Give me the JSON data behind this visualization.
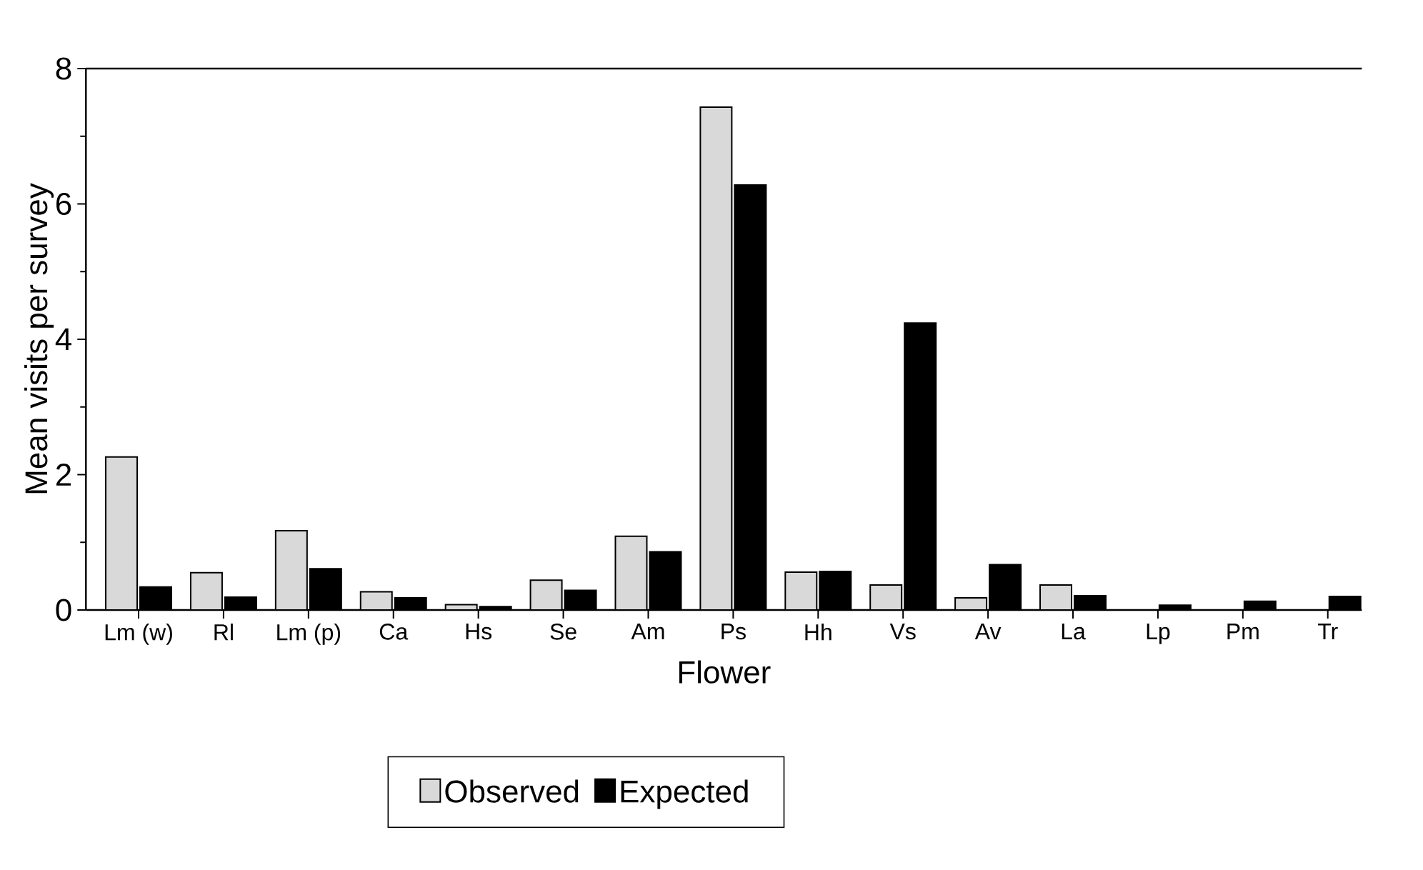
{
  "chart_data": {
    "type": "bar",
    "xlabel": "Flower",
    "ylabel": "Mean visits per survey",
    "categories": [
      "Lm (w)",
      "Rl",
      "Lm (p)",
      "Ca",
      "Hs",
      "Se",
      "Am",
      "Ps",
      "Hh",
      "Vs",
      "Av",
      "La",
      "Lp",
      "Pm",
      "Tr"
    ],
    "series": [
      {
        "name": "Observed",
        "color": "#d9d9d9",
        "values": [
          2.26,
          0.55,
          1.17,
          0.27,
          0.08,
          0.44,
          1.09,
          7.43,
          0.56,
          0.37,
          0.18,
          0.37,
          null,
          null,
          null
        ]
      },
      {
        "name": "Expected",
        "color": "#000000",
        "values": [
          0.34,
          0.19,
          0.61,
          0.18,
          0.05,
          0.29,
          0.86,
          6.28,
          0.57,
          4.24,
          0.67,
          0.21,
          0.07,
          0.13,
          0.2
        ]
      }
    ],
    "ylim": [
      0,
      8
    ],
    "yticks": [
      0,
      2,
      4,
      6,
      8
    ],
    "legend": "bottom"
  }
}
